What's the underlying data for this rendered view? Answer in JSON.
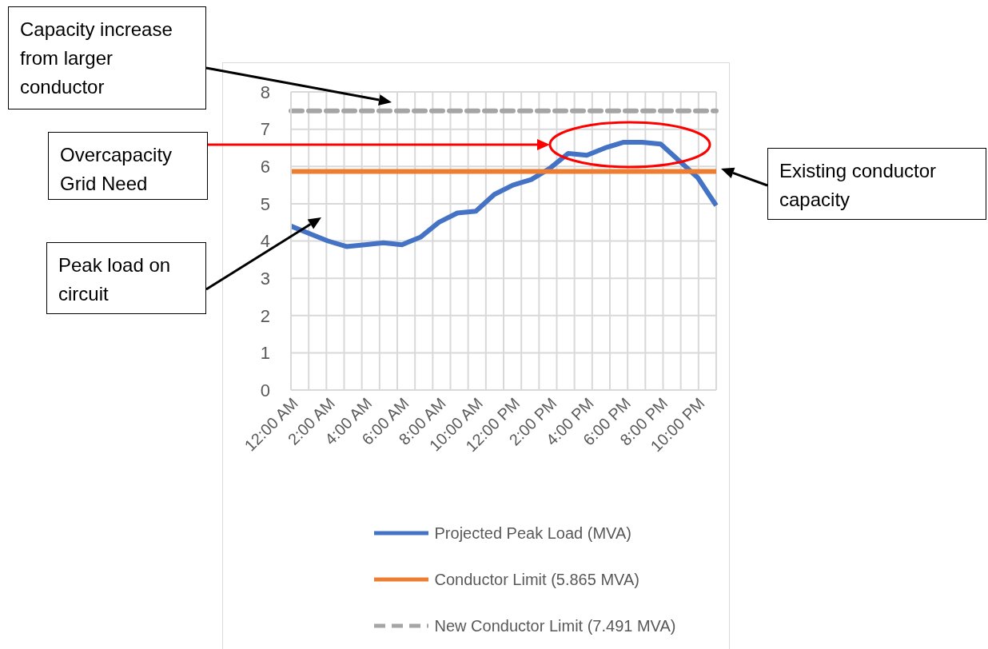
{
  "chart_data": {
    "type": "line",
    "categories": [
      "12:00 AM",
      null,
      "2:00 AM",
      null,
      "4:00 AM",
      null,
      "6:00 AM",
      null,
      "8:00 AM",
      null,
      "10:00 AM",
      null,
      "12:00 PM",
      null,
      "2:00 PM",
      null,
      "4:00 PM",
      null,
      "6:00 PM",
      null,
      "8:00 PM",
      null,
      "10:00 PM",
      null
    ],
    "series": [
      {
        "name": "Projected Peak Load (MVA)",
        "color": "#4472c4",
        "line_style": "solid",
        "values": [
          4.4,
          4.2,
          4.0,
          3.85,
          3.9,
          3.95,
          3.9,
          4.1,
          4.5,
          4.75,
          4.8,
          5.25,
          5.5,
          5.65,
          5.95,
          6.35,
          6.3,
          6.5,
          6.65,
          6.65,
          6.6,
          6.15,
          5.7,
          4.95
        ]
      },
      {
        "name": "Conductor Limit (5.865 MVA)",
        "color": "#ed7d31",
        "line_style": "solid",
        "values": [
          5.865,
          5.865,
          5.865,
          5.865,
          5.865,
          5.865,
          5.865,
          5.865,
          5.865,
          5.865,
          5.865,
          5.865,
          5.865,
          5.865,
          5.865,
          5.865,
          5.865,
          5.865,
          5.865,
          5.865,
          5.865,
          5.865,
          5.865,
          5.865
        ]
      },
      {
        "name": "New Conductor Limit (7.491 MVA)",
        "color": "#a5a5a5",
        "line_style": "dashed",
        "values": [
          7.491,
          7.491,
          7.491,
          7.491,
          7.491,
          7.491,
          7.491,
          7.491,
          7.491,
          7.491,
          7.491,
          7.491,
          7.491,
          7.491,
          7.491,
          7.491,
          7.491,
          7.491,
          7.491,
          7.491,
          7.491,
          7.491,
          7.491,
          7.491
        ]
      }
    ],
    "ylim": [
      0,
      8
    ],
    "yticks": [
      0,
      1,
      2,
      3,
      4,
      5,
      6,
      7,
      8
    ],
    "grid": true,
    "legend": "bottom",
    "marker": "none",
    "annotations": [
      "Capacity increase from larger conductor",
      "Overcapacity Grid Need",
      "Peak load on circuit",
      "Existing conductor capacity"
    ]
  }
}
